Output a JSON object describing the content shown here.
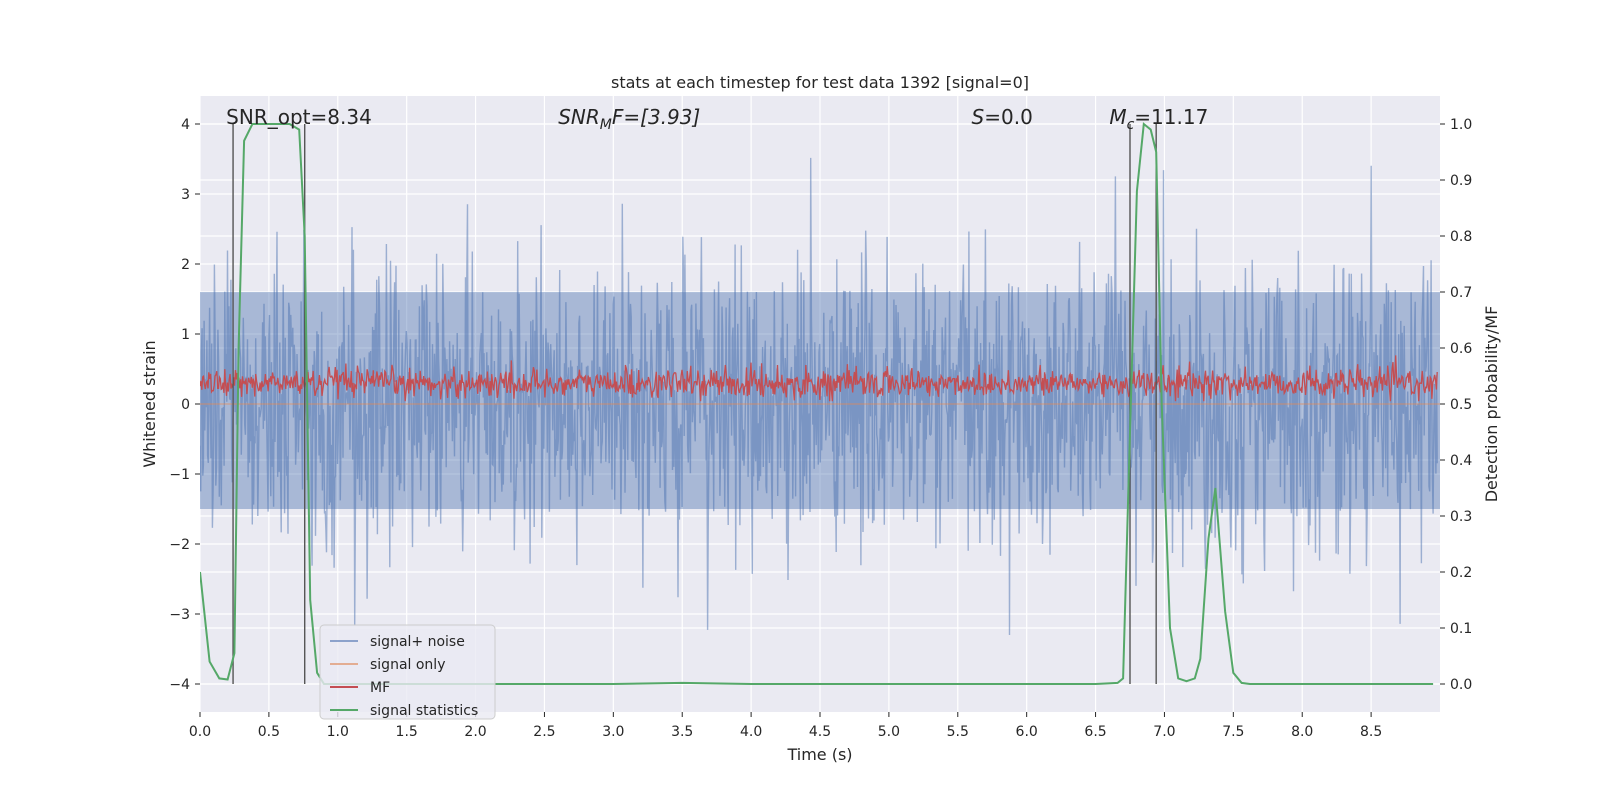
{
  "chart_data": {
    "type": "line",
    "title": "stats at each timestep for test data 1392 [signal=0]",
    "xlabel": "Time (s)",
    "ylabel_left": "Whitened strain",
    "ylabel_right": "Detection probability/MF",
    "xlim": [
      0.0,
      9.0
    ],
    "ylim_left": [
      -4.4,
      4.4
    ],
    "ylim_right": [
      -0.05,
      1.05
    ],
    "xticks": [
      0.0,
      0.5,
      1.0,
      1.5,
      2.0,
      2.5,
      3.0,
      3.5,
      4.0,
      4.5,
      5.0,
      5.5,
      6.0,
      6.5,
      7.0,
      7.5,
      8.0,
      8.5
    ],
    "xtick_labels": [
      "0.0",
      "0.5",
      "1.0",
      "1.5",
      "2.0",
      "2.5",
      "3.0",
      "3.5",
      "4.0",
      "4.5",
      "5.0",
      "5.5",
      "6.0",
      "6.5",
      "7.0",
      "7.5",
      "8.0",
      "8.5"
    ],
    "yticks_left": [
      -4,
      -3,
      -2,
      -1,
      0,
      1,
      2,
      3,
      4
    ],
    "ytick_labels_left": [
      "−4",
      "−3",
      "−2",
      "−1",
      "0",
      "1",
      "2",
      "3",
      "4"
    ],
    "yticks_right": [
      0.0,
      0.1,
      0.2,
      0.3,
      0.4,
      0.5,
      0.6,
      0.7,
      0.8,
      0.9,
      1.0
    ],
    "ytick_labels_right": [
      "0.0",
      "0.1",
      "0.2",
      "0.3",
      "0.4",
      "0.5",
      "0.6",
      "0.7",
      "0.8",
      "0.9",
      "1.0"
    ],
    "grid": true,
    "legend_position": "lower-left",
    "annotations": [
      {
        "id": "snr-opt",
        "text": "SNR_opt=8.34",
        "x": 0.19
      },
      {
        "id": "snr-mf",
        "text": "SNR",
        "sub": "M",
        "rest": "F=[3.93]",
        "x": 2.6
      },
      {
        "id": "s-value",
        "text": "S",
        "rest": "=0.0",
        "x": 5.6
      },
      {
        "id": "chirp-mass",
        "text": "M",
        "sub": "c",
        "rest": "=11.17",
        "x": 6.6
      }
    ],
    "vertical_markers": [
      0.24,
      0.76,
      6.75,
      6.94
    ],
    "series": [
      {
        "name": "signal+ noise",
        "color": "#4c72b0",
        "axis": "left",
        "description_range": [
          -3.3,
          3.75
        ],
        "envelope_core": [
          -1.5,
          1.6
        ]
      },
      {
        "name": "signal only",
        "color": "#dd8452",
        "axis": "left",
        "values_constant": 0
      },
      {
        "name": "MF",
        "color": "#c44e52",
        "axis": "right",
        "range": [
          0.5,
          0.6
        ]
      },
      {
        "name": "signal statistics",
        "color": "#55a868",
        "axis": "right",
        "x": [
          0.0,
          0.07,
          0.14,
          0.2,
          0.25,
          0.28,
          0.32,
          0.38,
          0.45,
          0.55,
          0.65,
          0.72,
          0.76,
          0.8,
          0.85,
          0.9,
          1.0,
          1.5,
          2.0,
          3.0,
          3.5,
          4.0,
          5.0,
          6.0,
          6.5,
          6.66,
          6.7,
          6.75,
          6.8,
          6.85,
          6.9,
          6.94,
          6.98,
          7.04,
          7.1,
          7.16,
          7.22,
          7.26,
          7.32,
          7.37,
          7.44,
          7.5,
          7.56,
          7.62,
          8.0,
          8.5,
          8.95
        ],
        "y": [
          0.2,
          0.04,
          0.01,
          0.008,
          0.055,
          0.6,
          0.97,
          1.0,
          1.0,
          1.0,
          1.0,
          0.99,
          0.8,
          0.15,
          0.02,
          0.0,
          0.0,
          0.0,
          0.0,
          0.0,
          0.002,
          0.0,
          0.0,
          0.0,
          0.0,
          0.002,
          0.01,
          0.45,
          0.88,
          1.0,
          0.99,
          0.95,
          0.5,
          0.1,
          0.01,
          0.005,
          0.01,
          0.045,
          0.26,
          0.35,
          0.13,
          0.02,
          0.002,
          0.0,
          0.0,
          0.0,
          0.0
        ]
      }
    ]
  }
}
